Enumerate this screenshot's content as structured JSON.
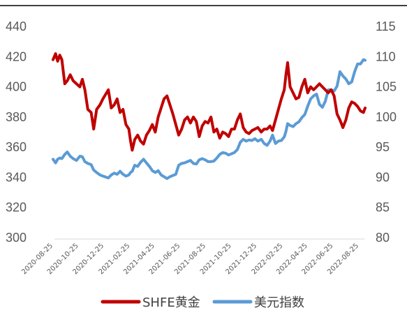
{
  "chart_data": {
    "type": "line",
    "title": "",
    "dual_axis": true,
    "grid": false,
    "legend_position": "bottom",
    "x_tick_labels": [
      "2020-08-25",
      "2020-10-25",
      "2020-12-25",
      "2021-02-25",
      "2021-04-25",
      "2021-06-25",
      "2021-08-25",
      "2021-10-25",
      "2021-12-25",
      "2022-02-25",
      "2022-04-25",
      "2022-06-25",
      "2022-08-25"
    ],
    "y_left": {
      "min": 300,
      "max": 440,
      "ticks": [
        440,
        420,
        400,
        380,
        360,
        340,
        320,
        300
      ]
    },
    "y_right": {
      "min": 80,
      "max": 115,
      "ticks": [
        115,
        110,
        105,
        100,
        95,
        90,
        85,
        80
      ]
    },
    "series": [
      {
        "name": "SHFE黄金",
        "axis": "left",
        "color": "#c00000",
        "points": [
          [
            "2020-08-25",
            418
          ],
          [
            "2020-08-31",
            422
          ],
          [
            "2020-09-05",
            417
          ],
          [
            "2020-09-10",
            421
          ],
          [
            "2020-09-15",
            418
          ],
          [
            "2020-09-22",
            402
          ],
          [
            "2020-09-28",
            404
          ],
          [
            "2020-10-05",
            408
          ],
          [
            "2020-10-12",
            404
          ],
          [
            "2020-10-20",
            402
          ],
          [
            "2020-10-28",
            400
          ],
          [
            "2020-11-03",
            405
          ],
          [
            "2020-11-09",
            398
          ],
          [
            "2020-11-16",
            385
          ],
          [
            "2020-11-24",
            383
          ],
          [
            "2020-11-30",
            372
          ],
          [
            "2020-12-07",
            385
          ],
          [
            "2020-12-15",
            388
          ],
          [
            "2020-12-22",
            392
          ],
          [
            "2021-01-04",
            398
          ],
          [
            "2021-01-11",
            386
          ],
          [
            "2021-01-18",
            388
          ],
          [
            "2021-01-25",
            392
          ],
          [
            "2021-02-01",
            383
          ],
          [
            "2021-02-08",
            385
          ],
          [
            "2021-02-15",
            375
          ],
          [
            "2021-02-22",
            372
          ],
          [
            "2021-02-26",
            364
          ],
          [
            "2021-03-02",
            358
          ],
          [
            "2021-03-08",
            365
          ],
          [
            "2021-03-15",
            368
          ],
          [
            "2021-03-22",
            364
          ],
          [
            "2021-03-29",
            362
          ],
          [
            "2021-04-05",
            368
          ],
          [
            "2021-04-12",
            371
          ],
          [
            "2021-04-19",
            375
          ],
          [
            "2021-04-26",
            370
          ],
          [
            "2021-05-03",
            380
          ],
          [
            "2021-05-10",
            386
          ],
          [
            "2021-05-17",
            392
          ],
          [
            "2021-05-24",
            394
          ],
          [
            "2021-05-31",
            388
          ],
          [
            "2021-06-07",
            382
          ],
          [
            "2021-06-14",
            375
          ],
          [
            "2021-06-21",
            368
          ],
          [
            "2021-06-28",
            372
          ],
          [
            "2021-07-05",
            378
          ],
          [
            "2021-07-12",
            380
          ],
          [
            "2021-07-19",
            376
          ],
          [
            "2021-07-26",
            380
          ],
          [
            "2021-08-02",
            377
          ],
          [
            "2021-08-09",
            367
          ],
          [
            "2021-08-16",
            374
          ],
          [
            "2021-08-23",
            377
          ],
          [
            "2021-08-30",
            376
          ],
          [
            "2021-09-06",
            380
          ],
          [
            "2021-09-13",
            370
          ],
          [
            "2021-09-20",
            372
          ],
          [
            "2021-09-27",
            366
          ],
          [
            "2021-10-04",
            370
          ],
          [
            "2021-10-11",
            369
          ],
          [
            "2021-10-18",
            367
          ],
          [
            "2021-10-25",
            372
          ],
          [
            "2021-11-01",
            372
          ],
          [
            "2021-11-08",
            378
          ],
          [
            "2021-11-15",
            382
          ],
          [
            "2021-11-22",
            373
          ],
          [
            "2021-11-29",
            370
          ],
          [
            "2021-12-06",
            369
          ],
          [
            "2021-12-13",
            371
          ],
          [
            "2021-12-20",
            372
          ],
          [
            "2021-12-27",
            373
          ],
          [
            "2022-01-04",
            370
          ],
          [
            "2022-01-11",
            372
          ],
          [
            "2022-01-18",
            372
          ],
          [
            "2022-01-25",
            374
          ],
          [
            "2022-01-31",
            371
          ],
          [
            "2022-02-07",
            378
          ],
          [
            "2022-02-14",
            385
          ],
          [
            "2022-02-21",
            392
          ],
          [
            "2022-02-28",
            398
          ],
          [
            "2022-03-04",
            408
          ],
          [
            "2022-03-08",
            416
          ],
          [
            "2022-03-14",
            400
          ],
          [
            "2022-03-21",
            396
          ],
          [
            "2022-03-28",
            392
          ],
          [
            "2022-04-04",
            393
          ],
          [
            "2022-04-11",
            400
          ],
          [
            "2022-04-18",
            405
          ],
          [
            "2022-04-25",
            396
          ],
          [
            "2022-05-02",
            400
          ],
          [
            "2022-05-09",
            398
          ],
          [
            "2022-05-16",
            400
          ],
          [
            "2022-05-23",
            402
          ],
          [
            "2022-05-30",
            400
          ],
          [
            "2022-06-06",
            398
          ],
          [
            "2022-06-13",
            396
          ],
          [
            "2022-06-20",
            398
          ],
          [
            "2022-06-27",
            394
          ],
          [
            "2022-07-04",
            382
          ],
          [
            "2022-07-11",
            378
          ],
          [
            "2022-07-18",
            373
          ],
          [
            "2022-07-25",
            378
          ],
          [
            "2022-08-01",
            386
          ],
          [
            "2022-08-08",
            390
          ],
          [
            "2022-08-15",
            389
          ],
          [
            "2022-08-22",
            387
          ],
          [
            "2022-08-29",
            384
          ],
          [
            "2022-09-05",
            383
          ],
          [
            "2022-09-09",
            386
          ]
        ]
      },
      {
        "name": "美元指数",
        "axis": "right",
        "color": "#5b9bd5",
        "points": [
          [
            "2020-08-25",
            93.0
          ],
          [
            "2020-08-31",
            92.4
          ],
          [
            "2020-09-05",
            93.0
          ],
          [
            "2020-09-10",
            93.2
          ],
          [
            "2020-09-15",
            93.1
          ],
          [
            "2020-09-22",
            93.8
          ],
          [
            "2020-09-28",
            94.2
          ],
          [
            "2020-10-05",
            93.5
          ],
          [
            "2020-10-12",
            93.1
          ],
          [
            "2020-10-20",
            92.8
          ],
          [
            "2020-10-28",
            93.5
          ],
          [
            "2020-11-03",
            93.4
          ],
          [
            "2020-11-09",
            92.6
          ],
          [
            "2020-11-16",
            92.3
          ],
          [
            "2020-11-24",
            92.1
          ],
          [
            "2020-11-30",
            91.2
          ],
          [
            "2020-12-07",
            90.8
          ],
          [
            "2020-12-15",
            90.4
          ],
          [
            "2020-12-22",
            90.2
          ],
          [
            "2021-01-04",
            89.9
          ],
          [
            "2021-01-11",
            90.4
          ],
          [
            "2021-01-18",
            90.7
          ],
          [
            "2021-01-25",
            90.5
          ],
          [
            "2021-02-01",
            91.0
          ],
          [
            "2021-02-08",
            90.5
          ],
          [
            "2021-02-15",
            90.2
          ],
          [
            "2021-02-22",
            90.4
          ],
          [
            "2021-02-26",
            90.8
          ],
          [
            "2021-03-02",
            91.0
          ],
          [
            "2021-03-08",
            92.0
          ],
          [
            "2021-03-15",
            91.8
          ],
          [
            "2021-03-22",
            92.5
          ],
          [
            "2021-03-29",
            93.0
          ],
          [
            "2021-04-05",
            92.4
          ],
          [
            "2021-04-12",
            91.8
          ],
          [
            "2021-04-19",
            91.1
          ],
          [
            "2021-04-26",
            90.8
          ],
          [
            "2021-05-03",
            91.1
          ],
          [
            "2021-05-10",
            90.4
          ],
          [
            "2021-05-17",
            90.1
          ],
          [
            "2021-05-24",
            89.8
          ],
          [
            "2021-05-31",
            90.1
          ],
          [
            "2021-06-07",
            90.3
          ],
          [
            "2021-06-14",
            90.5
          ],
          [
            "2021-06-21",
            92.0
          ],
          [
            "2021-06-28",
            92.3
          ],
          [
            "2021-07-05",
            92.4
          ],
          [
            "2021-07-12",
            92.6
          ],
          [
            "2021-07-19",
            92.8
          ],
          [
            "2021-07-26",
            92.3
          ],
          [
            "2021-08-02",
            92.2
          ],
          [
            "2021-08-09",
            92.9
          ],
          [
            "2021-08-16",
            93.1
          ],
          [
            "2021-08-23",
            92.9
          ],
          [
            "2021-08-30",
            92.6
          ],
          [
            "2021-09-06",
            92.6
          ],
          [
            "2021-09-13",
            92.7
          ],
          [
            "2021-09-20",
            93.2
          ],
          [
            "2021-09-27",
            93.8
          ],
          [
            "2021-10-04",
            94.1
          ],
          [
            "2021-10-11",
            94.0
          ],
          [
            "2021-10-18",
            93.7
          ],
          [
            "2021-10-25",
            93.9
          ],
          [
            "2021-11-01",
            94.1
          ],
          [
            "2021-11-08",
            94.6
          ],
          [
            "2021-11-15",
            95.8
          ],
          [
            "2021-11-22",
            96.3
          ],
          [
            "2021-11-29",
            96.0
          ],
          [
            "2021-12-06",
            96.2
          ],
          [
            "2021-12-13",
            96.1
          ],
          [
            "2021-12-20",
            96.4
          ],
          [
            "2021-12-27",
            96.0
          ],
          [
            "2022-01-04",
            96.3
          ],
          [
            "2022-01-11",
            95.6
          ],
          [
            "2022-01-18",
            95.3
          ],
          [
            "2022-01-25",
            96.0
          ],
          [
            "2022-01-31",
            97.0
          ],
          [
            "2022-02-07",
            95.6
          ],
          [
            "2022-02-14",
            96.0
          ],
          [
            "2022-02-21",
            96.1
          ],
          [
            "2022-02-28",
            96.7
          ],
          [
            "2022-03-04",
            97.6
          ],
          [
            "2022-03-08",
            98.9
          ],
          [
            "2022-03-14",
            98.6
          ],
          [
            "2022-03-21",
            98.4
          ],
          [
            "2022-03-28",
            98.9
          ],
          [
            "2022-04-04",
            99.2
          ],
          [
            "2022-04-11",
            99.9
          ],
          [
            "2022-04-18",
            100.4
          ],
          [
            "2022-04-25",
            101.8
          ],
          [
            "2022-05-02",
            103.0
          ],
          [
            "2022-05-09",
            103.5
          ],
          [
            "2022-05-16",
            103.8
          ],
          [
            "2022-05-23",
            102.1
          ],
          [
            "2022-05-30",
            101.6
          ],
          [
            "2022-06-06",
            102.6
          ],
          [
            "2022-06-13",
            104.5
          ],
          [
            "2022-06-20",
            104.5
          ],
          [
            "2022-06-27",
            104.3
          ],
          [
            "2022-07-04",
            105.1
          ],
          [
            "2022-07-11",
            107.5
          ],
          [
            "2022-07-18",
            106.8
          ],
          [
            "2022-07-25",
            106.3
          ],
          [
            "2022-08-01",
            105.5
          ],
          [
            "2022-08-08",
            105.8
          ],
          [
            "2022-08-15",
            107.5
          ],
          [
            "2022-08-22",
            108.8
          ],
          [
            "2022-08-29",
            108.8
          ],
          [
            "2022-09-05",
            109.5
          ],
          [
            "2022-09-09",
            109.4
          ]
        ]
      }
    ]
  }
}
